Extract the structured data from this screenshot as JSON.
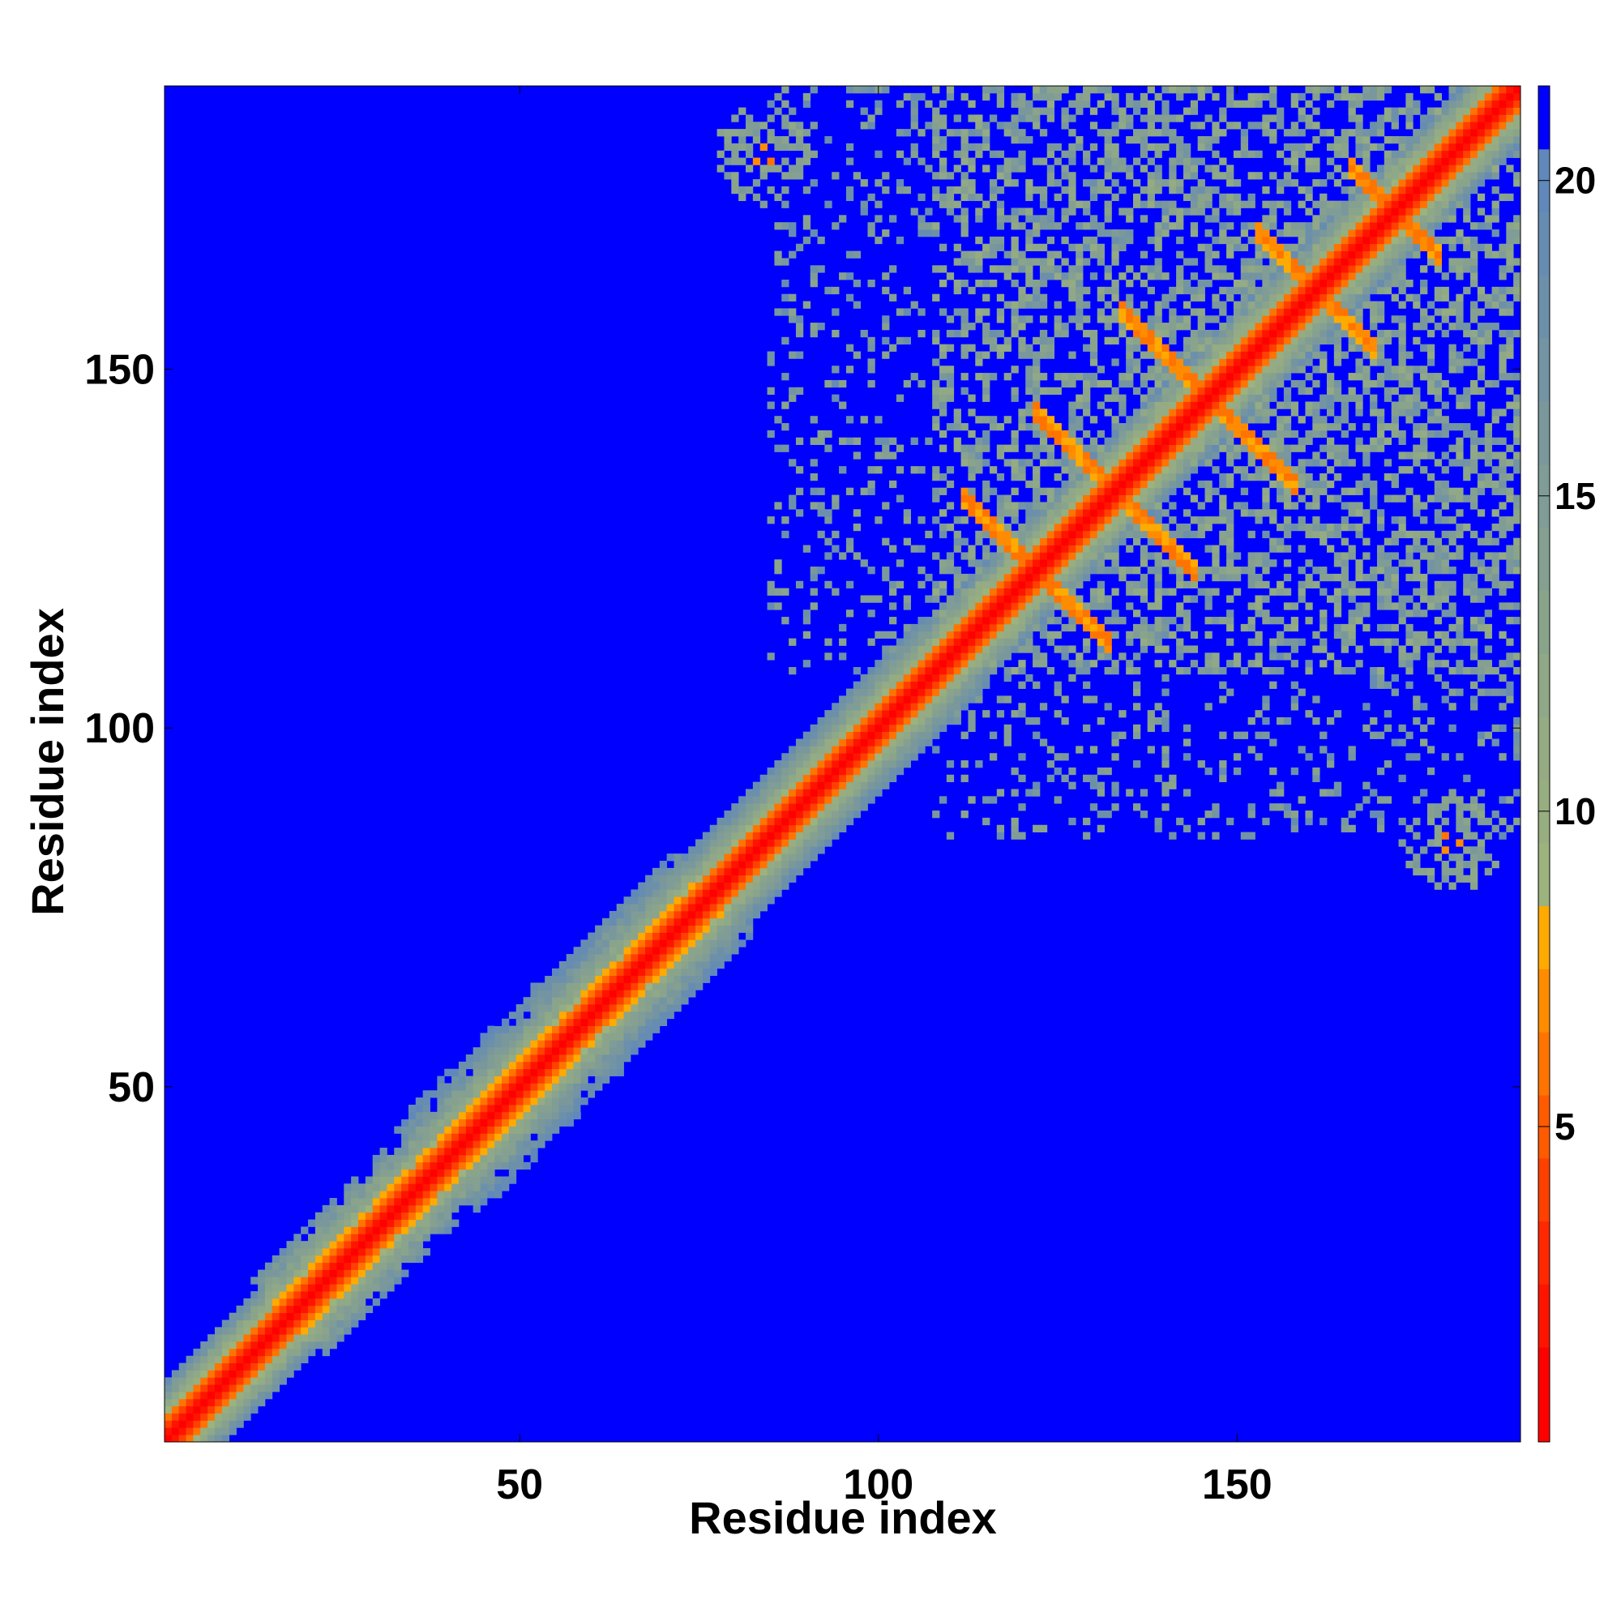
{
  "chart_data": {
    "type": "heatmap",
    "title": "",
    "xlabel": "Residue index",
    "ylabel": "Residue index",
    "n_residues": 189,
    "xlim": [
      1,
      189
    ],
    "ylim": [
      1,
      189
    ],
    "xticks": [
      50,
      100,
      150
    ],
    "yticks": [
      50,
      100,
      150
    ],
    "colorbar": {
      "range": [
        0,
        21.5
      ],
      "ticks": [
        5,
        10,
        15,
        20
      ],
      "levels": [
        {
          "max": 1.5,
          "color": "#ff0000"
        },
        {
          "max": 2.5,
          "color": "#ff1400"
        },
        {
          "max": 3.5,
          "color": "#ff2800"
        },
        {
          "max": 4.5,
          "color": "#ff4000"
        },
        {
          "max": 5.5,
          "color": "#ff5a00"
        },
        {
          "max": 6.5,
          "color": "#ff7400"
        },
        {
          "max": 7.5,
          "color": "#ff8c00"
        },
        {
          "max": 8.5,
          "color": "#ffaa00"
        },
        {
          "max": 9.5,
          "color": "#9cb37e"
        },
        {
          "max": 10.5,
          "color": "#97ae80"
        },
        {
          "max": 11.5,
          "color": "#94ab84"
        },
        {
          "max": 12.5,
          "color": "#8fa888"
        },
        {
          "max": 13.5,
          "color": "#8aa48c"
        },
        {
          "max": 14.5,
          "color": "#85a090"
        },
        {
          "max": 15.5,
          "color": "#809c96"
        },
        {
          "max": 16.5,
          "color": "#7a989c"
        },
        {
          "max": 17.5,
          "color": "#7394a2"
        },
        {
          "max": 18.5,
          "color": "#6d90aa"
        },
        {
          "max": 19.5,
          "color": "#678cb2"
        },
        {
          "max": 20.5,
          "color": "#6088ba"
        },
        {
          "max": 21.5,
          "color": "#0000ff"
        }
      ],
      "background_color": "#0000ff"
    },
    "features": {
      "diagonal_band": {
        "core_width": 1.5,
        "near_width": 3.5,
        "halo_width": 8
      },
      "helix_blobs": [
        {
          "start": 20,
          "end": 34,
          "halo_width": 10
        },
        {
          "start": 40,
          "end": 58,
          "halo_width": 12
        },
        {
          "start": 62,
          "end": 75,
          "halo_width": 11
        }
      ],
      "antidiagonal_contacts": [
        {
          "center": 122,
          "sum": 244,
          "half_length": 10,
          "thickness": 1.2
        },
        {
          "center": 133,
          "sum": 266,
          "half_length": 11,
          "thickness": 1.2
        },
        {
          "center": 146,
          "sum": 292,
          "half_length": 12,
          "thickness": 1.2
        },
        {
          "center": 161,
          "sum": 322,
          "half_length": 8,
          "thickness": 1.2
        },
        {
          "center": 172,
          "sum": 344,
          "half_length": 6,
          "thickness": 1.2
        }
      ],
      "domain_region": {
        "start": 108,
        "end": 189
      },
      "long_range_patches": [
        {
          "i": 84,
          "j": 180,
          "radius": 7
        },
        {
          "i": 180,
          "j": 84,
          "radius": 7
        }
      ]
    }
  }
}
